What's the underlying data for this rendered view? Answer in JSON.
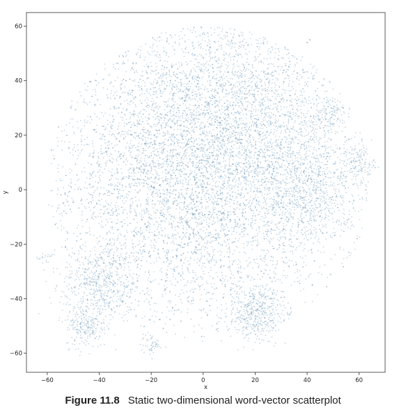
{
  "caption": {
    "figure_number": "Figure 11.8",
    "text": "Static two-dimensional word-vector scatterplot"
  },
  "chart_data": {
    "type": "scatter",
    "title": "",
    "xlabel": "x",
    "ylabel": "y",
    "xlim": [
      -68,
      70
    ],
    "ylim": [
      -67,
      65
    ],
    "x_ticks": [
      -60,
      -40,
      -20,
      0,
      20,
      40,
      60
    ],
    "y_ticks": [
      -60,
      -40,
      -20,
      0,
      20,
      40,
      60
    ],
    "x_tick_labels": [
      "−60",
      "−40",
      "−20",
      "0",
      "20",
      "40",
      "60"
    ],
    "y_tick_labels": [
      "−60",
      "−40",
      "−20",
      "0",
      "20",
      "40",
      "60"
    ],
    "grid": false,
    "legend": "none",
    "point_color": "#5b8db3",
    "point_opacity": 0.35,
    "approx_point_count": 10000,
    "cluster_centers": [
      {
        "x": -5,
        "y": 5,
        "spread": 28,
        "weight": 0.55
      },
      {
        "x": 40,
        "y": 0,
        "spread": 11,
        "weight": 0.08
      },
      {
        "x": 20,
        "y": -45,
        "spread": 5,
        "weight": 0.04
      },
      {
        "x": -40,
        "y": -35,
        "spread": 7,
        "weight": 0.05
      },
      {
        "x": -45,
        "y": -50,
        "spread": 4,
        "weight": 0.02
      },
      {
        "x": 48,
        "y": 28,
        "spread": 3,
        "weight": 0.01
      },
      {
        "x": 60,
        "y": 10,
        "spread": 3,
        "weight": 0.01
      },
      {
        "x": -20,
        "y": -57,
        "spread": 2,
        "weight": 0.005
      },
      {
        "x": -61,
        "y": -25,
        "spread": 1.5,
        "weight": 0.002
      },
      {
        "x": 15,
        "y": 30,
        "spread": 20,
        "weight": 0.15
      }
    ],
    "outliers": [
      {
        "x": 40,
        "y": 54
      },
      {
        "x": 41,
        "y": 55
      },
      {
        "x": 42,
        "y": -35
      },
      {
        "x": -53,
        "y": -21
      }
    ]
  }
}
